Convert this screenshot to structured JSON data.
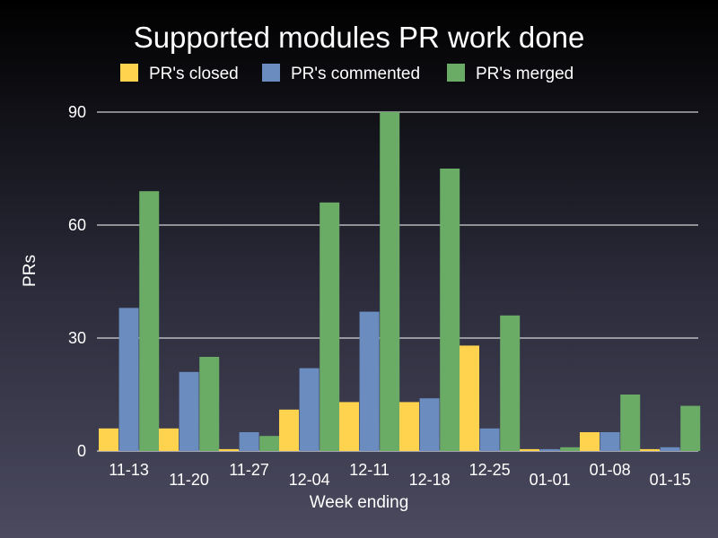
{
  "chart_data": {
    "type": "bar",
    "title": "Supported modules PR work done",
    "xlabel": "Week ending",
    "ylabel": "PRs",
    "ylim": [
      0,
      90
    ],
    "yticks": [
      0,
      30,
      60,
      90
    ],
    "grid": true,
    "legend_position": "top",
    "categories": [
      "11-13",
      "11-20",
      "11-27",
      "12-04",
      "12-11",
      "12-18",
      "12-25",
      "01-01",
      "01-08",
      "01-15"
    ],
    "series": [
      {
        "name": "PR's closed",
        "color": "#ffd34e",
        "values": [
          6,
          6,
          0.5,
          11,
          13,
          13,
          28,
          0.5,
          5,
          0.5
        ]
      },
      {
        "name": "PR's commented",
        "color": "#6b8cbf",
        "values": [
          38,
          21,
          5,
          22,
          37,
          14,
          6,
          0.5,
          5,
          1
        ]
      },
      {
        "name": "PR's merged",
        "color": "#6aab66",
        "values": [
          69,
          25,
          4,
          66,
          90,
          75,
          36,
          1,
          15,
          12
        ]
      }
    ]
  }
}
